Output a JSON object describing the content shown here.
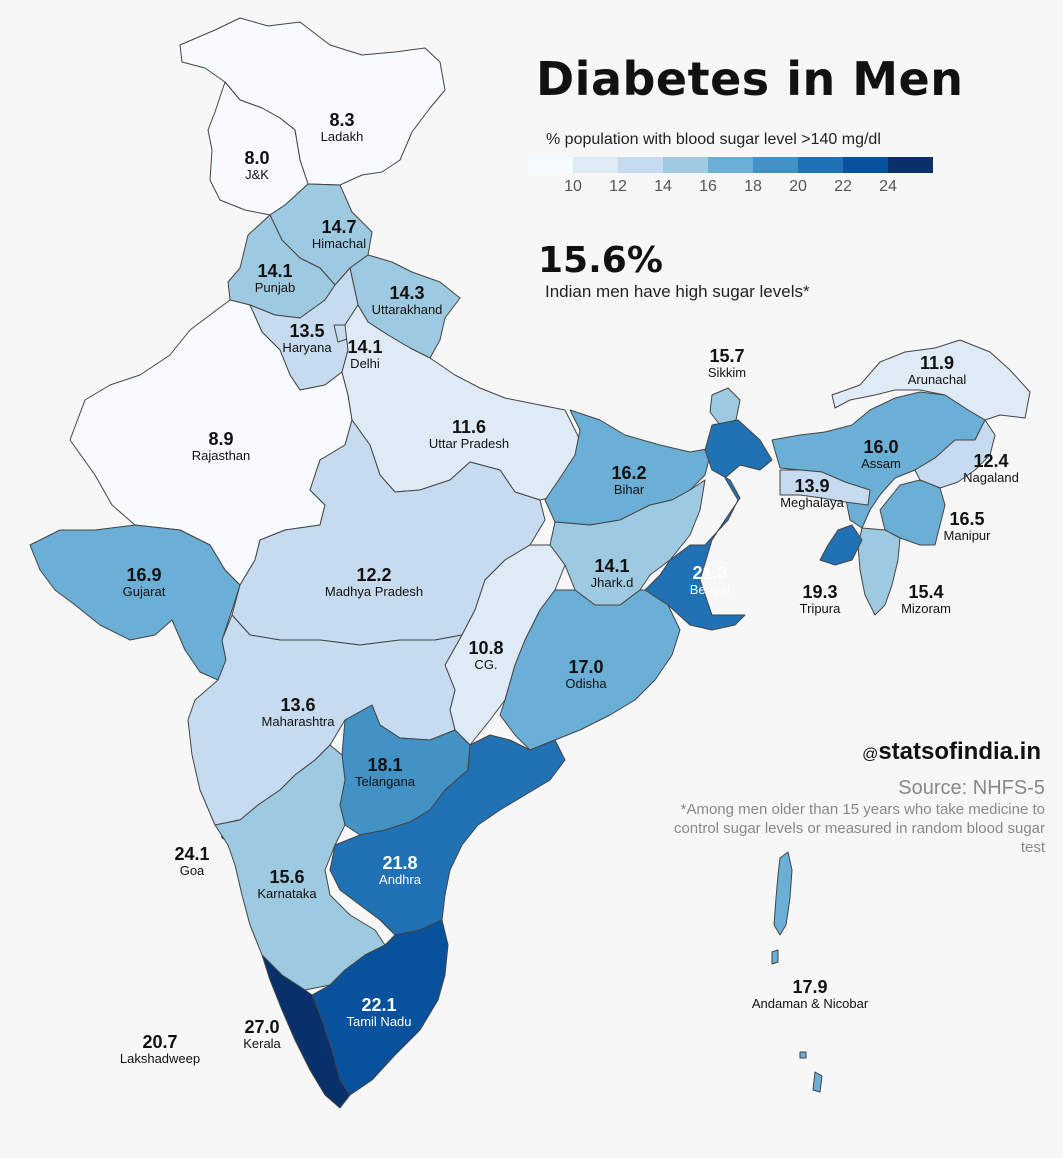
{
  "title": "Diabetes in Men",
  "legend": {
    "title": "% population with blood sugar level >140 mg/dl",
    "colors": [
      "#f7fbff",
      "#deebf7",
      "#c6dbef",
      "#9ecae1",
      "#6baed6",
      "#4292c6",
      "#2171b5",
      "#08519c",
      "#08306b"
    ],
    "ticks": [
      "10",
      "12",
      "14",
      "16",
      "18",
      "20",
      "22",
      "24"
    ]
  },
  "headline": {
    "value": "15.6%",
    "text": "Indian men have high sugar levels*"
  },
  "credit": {
    "at": "@",
    "handle": "statsofindia.in"
  },
  "source": "Source: NHFS-5",
  "note": "*Among men older than 15 years who take medicine to control sugar levels or measured in random blood sugar test",
  "chart_data": {
    "type": "choropleth",
    "regions": [
      {
        "name": "Ladakh",
        "value": "8.3"
      },
      {
        "name": "J&K",
        "value": "8.0"
      },
      {
        "name": "Himachal",
        "value": "14.7"
      },
      {
        "name": "Punjab",
        "value": "14.1"
      },
      {
        "name": "Uttarakhand",
        "value": "14.3"
      },
      {
        "name": "Haryana",
        "value": "13.5"
      },
      {
        "name": "Delhi",
        "value": "14.1"
      },
      {
        "name": "Rajasthan",
        "value": "8.9"
      },
      {
        "name": "Uttar Pradesh",
        "value": "11.6"
      },
      {
        "name": "Bihar",
        "value": "16.2"
      },
      {
        "name": "Sikkim",
        "value": "15.7"
      },
      {
        "name": "Arunachal",
        "value": "11.9"
      },
      {
        "name": "Assam",
        "value": "16.0"
      },
      {
        "name": "Nagaland",
        "value": "12.4"
      },
      {
        "name": "Meghalaya",
        "value": "13.9"
      },
      {
        "name": "Manipur",
        "value": "16.5"
      },
      {
        "name": "Tripura",
        "value": "19.3"
      },
      {
        "name": "Mizoram",
        "value": "15.4"
      },
      {
        "name": "Gujarat",
        "value": "16.9"
      },
      {
        "name": "Madhya Pradesh",
        "value": "12.2"
      },
      {
        "name": "Jhark.d",
        "value": "14.1"
      },
      {
        "name": "Bengal",
        "value": "21.3"
      },
      {
        "name": "CG.",
        "value": "10.8"
      },
      {
        "name": "Odisha",
        "value": "17.0"
      },
      {
        "name": "Maharashtra",
        "value": "13.6"
      },
      {
        "name": "Telangana",
        "value": "18.1"
      },
      {
        "name": "Goa",
        "value": "24.1"
      },
      {
        "name": "Karnataka",
        "value": "15.6"
      },
      {
        "name": "Andhra",
        "value": "21.8"
      },
      {
        "name": "Tamil Nadu",
        "value": "22.1"
      },
      {
        "name": "Kerala",
        "value": "27.0"
      },
      {
        "name": "Lakshadweep",
        "value": "20.7"
      },
      {
        "name": "Andaman & Nicobar",
        "value": "17.9"
      }
    ]
  }
}
